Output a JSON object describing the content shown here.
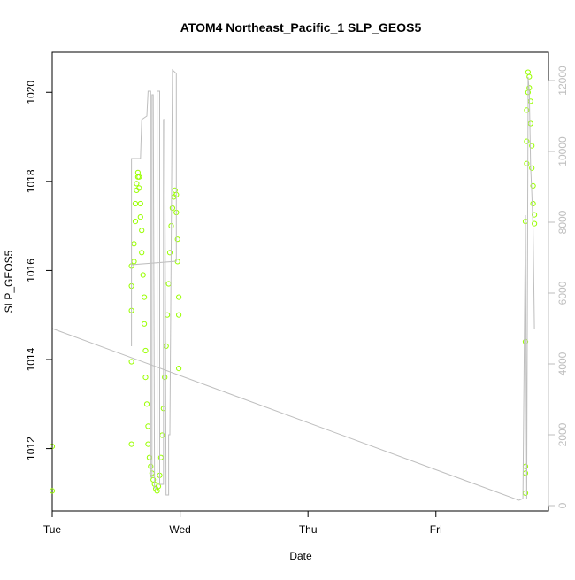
{
  "chart_data": {
    "type": "scatter",
    "title": "ATOM4 Northeast_Pacific_1 SLP_GEOS5",
    "xlabel": "Date",
    "ylabel": "SLP_GEOS5",
    "xlim": [
      0,
      3.88
    ],
    "ylim": [
      1010.6,
      1020.9
    ],
    "y2lim": [
      -150,
      12800
    ],
    "x_ticks": [
      {
        "value": 0,
        "label": "Tue"
      },
      {
        "value": 1,
        "label": "Wed"
      },
      {
        "value": 2,
        "label": "Thu"
      },
      {
        "value": 3,
        "label": "Fri"
      }
    ],
    "y_ticks": [
      1012,
      1014,
      1016,
      1018,
      1020
    ],
    "y2_ticks": [
      0,
      2000,
      4000,
      6000,
      8000,
      10000,
      12000
    ],
    "point_color": "#99ff00",
    "line_color": "#bebebe",
    "series": [
      {
        "kind": "points",
        "axis": "left",
        "points": [
          [
            0.0,
            1012.05
          ],
          [
            0.0,
            1011.05
          ],
          [
            0.62,
            1015.65
          ],
          [
            0.62,
            1016.1
          ],
          [
            0.62,
            1015.1
          ],
          [
            0.62,
            1013.95
          ],
          [
            0.62,
            1012.1
          ],
          [
            0.64,
            1016.2
          ],
          [
            0.64,
            1016.6
          ],
          [
            0.65,
            1017.1
          ],
          [
            0.65,
            1017.5
          ],
          [
            0.66,
            1017.8
          ],
          [
            0.66,
            1017.95
          ],
          [
            0.67,
            1018.1
          ],
          [
            0.67,
            1018.2
          ],
          [
            0.68,
            1018.1
          ],
          [
            0.68,
            1017.85
          ],
          [
            0.69,
            1017.5
          ],
          [
            0.69,
            1017.2
          ],
          [
            0.7,
            1016.9
          ],
          [
            0.7,
            1016.4
          ],
          [
            0.71,
            1015.9
          ],
          [
            0.72,
            1015.4
          ],
          [
            0.72,
            1014.8
          ],
          [
            0.73,
            1014.2
          ],
          [
            0.73,
            1013.6
          ],
          [
            0.74,
            1013.0
          ],
          [
            0.75,
            1012.5
          ],
          [
            0.75,
            1012.1
          ],
          [
            0.76,
            1011.8
          ],
          [
            0.77,
            1011.6
          ],
          [
            0.78,
            1011.45
          ],
          [
            0.79,
            1011.3
          ],
          [
            0.8,
            1011.2
          ],
          [
            0.81,
            1011.1
          ],
          [
            0.82,
            1011.05
          ],
          [
            0.83,
            1011.15
          ],
          [
            0.84,
            1011.4
          ],
          [
            0.85,
            1011.8
          ],
          [
            0.86,
            1012.3
          ],
          [
            0.87,
            1012.9
          ],
          [
            0.88,
            1013.6
          ],
          [
            0.89,
            1014.3
          ],
          [
            0.9,
            1015.0
          ],
          [
            0.91,
            1015.7
          ],
          [
            0.92,
            1016.4
          ],
          [
            0.93,
            1017.0
          ],
          [
            0.94,
            1017.4
          ],
          [
            0.95,
            1017.65
          ],
          [
            0.96,
            1017.8
          ],
          [
            0.97,
            1017.7
          ],
          [
            0.97,
            1017.3
          ],
          [
            0.98,
            1016.7
          ],
          [
            0.98,
            1016.2
          ],
          [
            0.99,
            1015.4
          ],
          [
            0.99,
            1015.0
          ],
          [
            0.99,
            1013.8
          ],
          [
            3.7,
            1011.0
          ],
          [
            3.7,
            1011.45
          ],
          [
            3.7,
            1011.6
          ],
          [
            3.7,
            1014.4
          ],
          [
            3.7,
            1017.1
          ],
          [
            3.71,
            1018.4
          ],
          [
            3.71,
            1018.9
          ],
          [
            3.71,
            1019.6
          ],
          [
            3.72,
            1020.0
          ],
          [
            3.72,
            1020.45
          ],
          [
            3.73,
            1020.35
          ],
          [
            3.73,
            1020.1
          ],
          [
            3.74,
            1019.8
          ],
          [
            3.74,
            1019.3
          ],
          [
            3.75,
            1018.8
          ],
          [
            3.75,
            1018.3
          ],
          [
            3.76,
            1017.9
          ],
          [
            3.76,
            1017.5
          ],
          [
            3.77,
            1017.05
          ],
          [
            3.77,
            1017.25
          ]
        ]
      },
      {
        "kind": "line",
        "axis": "right",
        "points": [
          [
            0.0,
            5900
          ],
          [
            0.0,
            5000
          ],
          [
            3.65,
            150
          ],
          [
            3.68,
            200
          ],
          [
            3.7,
            8200
          ],
          [
            3.71,
            200
          ],
          [
            3.72,
            11300
          ],
          [
            3.72,
            12100
          ],
          [
            3.73,
            11700
          ],
          [
            3.74,
            9600
          ],
          [
            3.75,
            8800
          ],
          [
            3.76,
            7800
          ],
          [
            3.77,
            5000
          ]
        ]
      },
      {
        "kind": "line",
        "axis": "right",
        "points": [
          [
            0.62,
            4500
          ],
          [
            0.62,
            9800
          ],
          [
            0.69,
            9800
          ],
          [
            0.7,
            10900
          ],
          [
            0.74,
            11000
          ],
          [
            0.75,
            11700
          ],
          [
            0.77,
            11700
          ],
          [
            0.77,
            800
          ],
          [
            0.78,
            800
          ],
          [
            0.78,
            11600
          ],
          [
            0.79,
            11600
          ],
          [
            0.8,
            500
          ],
          [
            0.82,
            500
          ],
          [
            0.82,
            11700
          ],
          [
            0.84,
            11700
          ],
          [
            0.84,
            600
          ],
          [
            0.87,
            600
          ],
          [
            0.87,
            10900
          ],
          [
            0.88,
            10900
          ],
          [
            0.89,
            300
          ],
          [
            0.91,
            300
          ],
          [
            0.91,
            2000
          ],
          [
            0.92,
            2000
          ],
          [
            0.94,
            12300
          ],
          [
            0.97,
            12200
          ],
          [
            0.97,
            6900
          ],
          [
            0.62,
            6800
          ],
          [
            0.62,
            6500
          ]
        ]
      }
    ]
  }
}
